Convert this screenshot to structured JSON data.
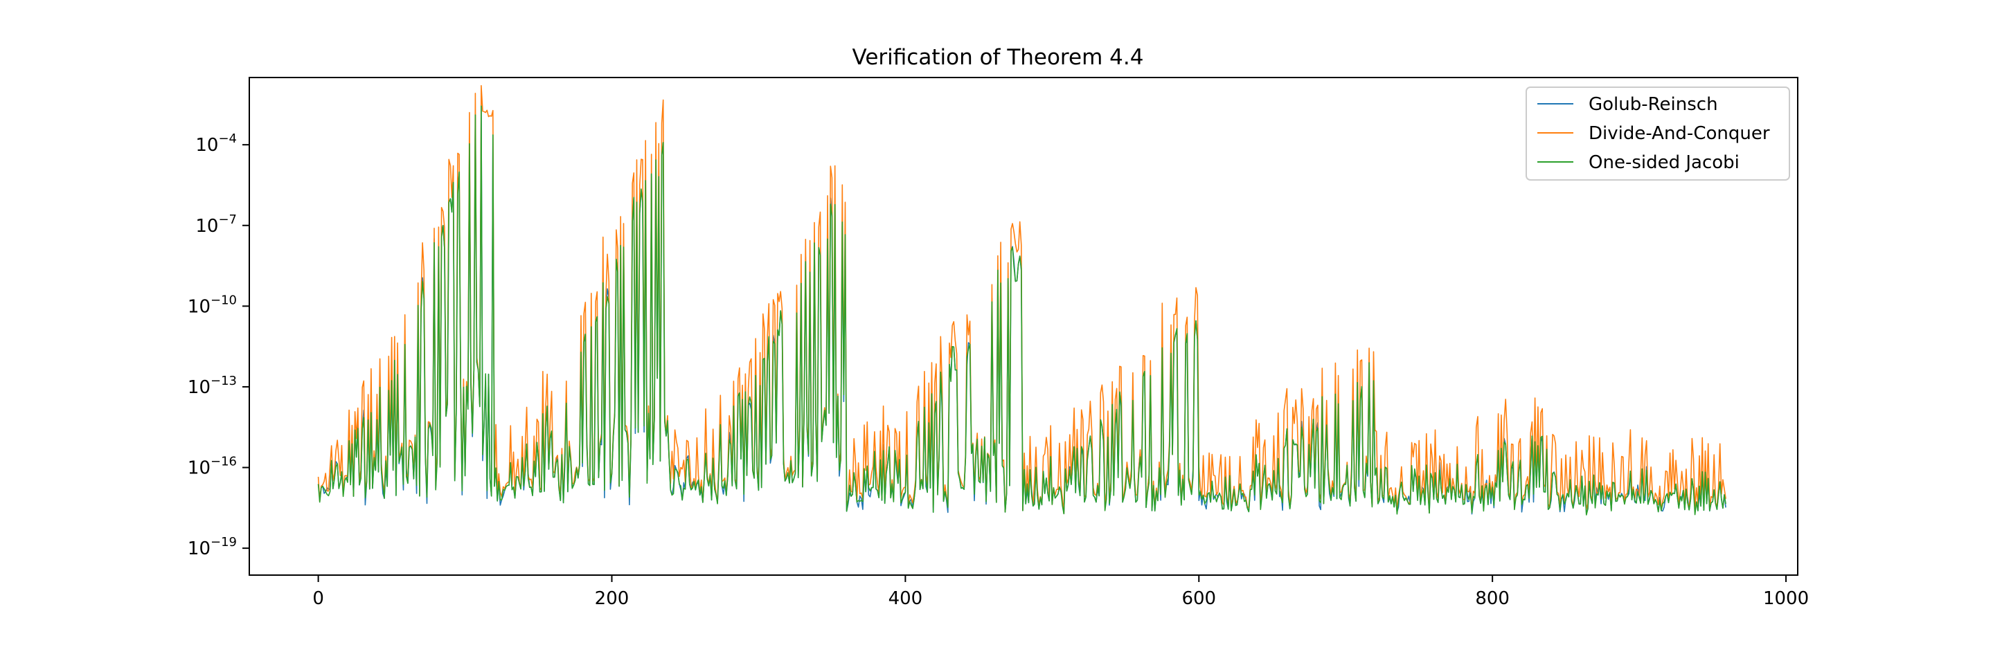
{
  "chart_data": {
    "type": "line",
    "title": "Verification of Theorem 4.4",
    "xlabel": "",
    "ylabel": "",
    "xlim": [
      -47,
      1008
    ],
    "ylim_log10": [
      -20,
      -1.5
    ],
    "yscale": "log",
    "x_ticks": [
      0,
      200,
      400,
      600,
      800,
      1000
    ],
    "y_ticks": [
      {
        "base": "10",
        "exp": "−4",
        "log10": -4
      },
      {
        "base": "10",
        "exp": "−7",
        "log10": -7
      },
      {
        "base": "10",
        "exp": "−10",
        "log10": -10
      },
      {
        "base": "10",
        "exp": "−13",
        "log10": -13
      },
      {
        "base": "10",
        "exp": "−16",
        "log10": -16
      },
      {
        "base": "10",
        "exp": "−19",
        "log10": -19
      }
    ],
    "grid": false,
    "legend_position": "top-right",
    "n_points": 960,
    "blocks": [
      {
        "start": 0,
        "end": 120,
        "peak_log10": -2.5
      },
      {
        "start": 120,
        "end": 240,
        "peak_log10": -3.8
      },
      {
        "start": 240,
        "end": 360,
        "peak_log10": -5.9
      },
      {
        "start": 360,
        "end": 480,
        "peak_log10": -7.7
      },
      {
        "start": 480,
        "end": 600,
        "peak_log10": -10.0
      },
      {
        "start": 600,
        "end": 720,
        "peak_log10": -12.0
      },
      {
        "start": 720,
        "end": 840,
        "peak_log10": -14.7
      },
      {
        "start": 840,
        "end": 960,
        "peak_log10": -16.1
      }
    ],
    "series": [
      {
        "name": "Golub-Reinsch",
        "color": "#1f77b4"
      },
      {
        "name": "Divide-And-Conquer",
        "color": "#ff7f0e"
      },
      {
        "name": "One-sided Jacobi",
        "color": "#2ca02c"
      }
    ]
  }
}
